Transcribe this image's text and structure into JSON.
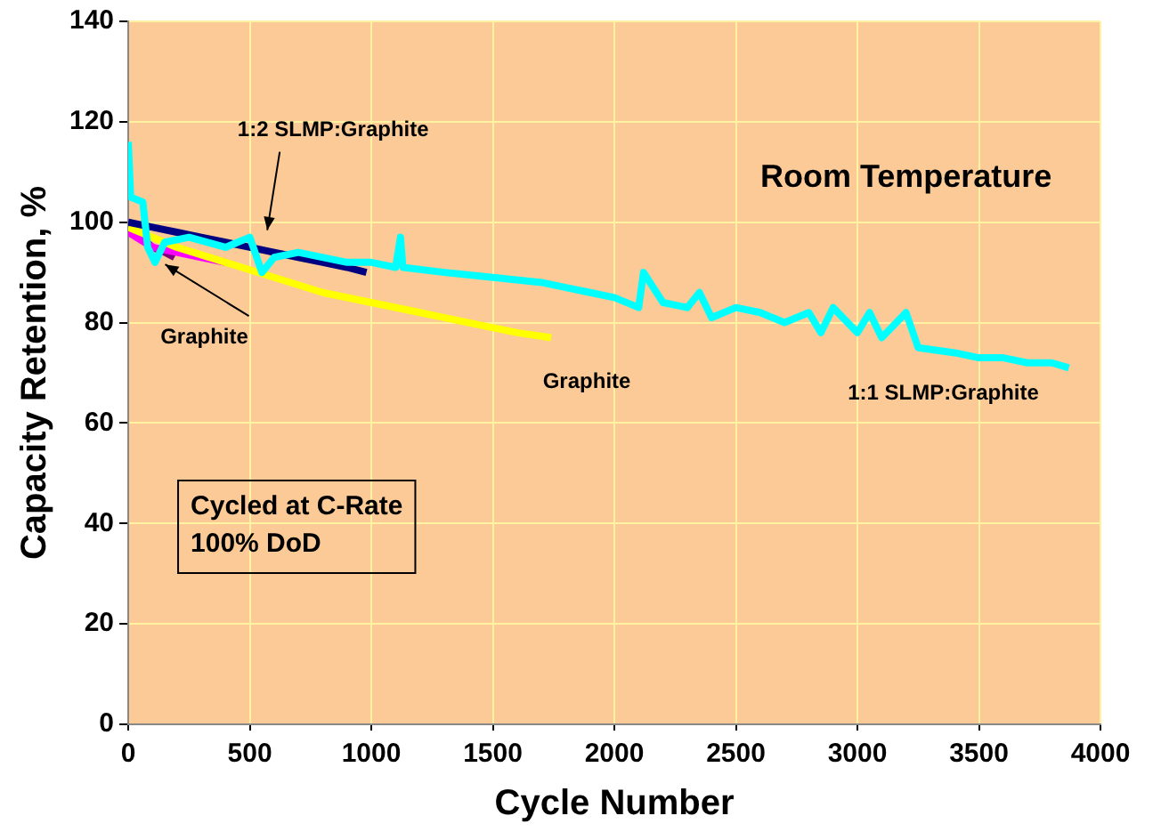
{
  "chart_data": {
    "type": "line",
    "xlabel": "Cycle Number",
    "ylabel": "Capacity Retention, %",
    "xlim": [
      0,
      4000
    ],
    "xticks": [
      0,
      500,
      1000,
      1500,
      2000,
      2500,
      3000,
      3500,
      4000
    ],
    "ylim": [
      0,
      140
    ],
    "yticks": [
      0,
      20,
      40,
      60,
      80,
      100,
      120,
      140
    ],
    "grid": true,
    "legend": false,
    "marker": "none",
    "line_style": "solid",
    "series": [
      {
        "color": "#00ffff",
        "x": [
          0,
          10,
          60,
          80,
          110,
          150,
          250,
          400,
          500,
          550,
          600,
          700,
          900,
          1000,
          1100,
          1120,
          1130,
          1300,
          1500,
          1700,
          1800,
          1900,
          2000,
          2100,
          2120,
          2200,
          2300,
          2350,
          2400,
          2500,
          2600,
          2700,
          2800,
          2850,
          2900,
          3000,
          3050,
          3100,
          3200,
          3250,
          3400,
          3500,
          3600,
          3700,
          3800,
          3870
        ],
        "values": [
          116,
          105,
          104,
          95,
          92,
          96,
          97,
          95,
          97,
          90,
          93,
          94,
          92,
          92,
          91,
          97,
          91,
          90,
          89,
          88,
          87,
          86,
          85,
          83,
          90,
          84,
          83,
          86,
          81,
          83,
          82,
          80,
          82,
          78,
          83,
          78,
          82,
          77,
          82,
          75,
          74,
          73,
          73,
          72,
          72,
          71
        ]
      },
      {
        "color": "#000080",
        "x": [
          0,
          100,
          200,
          300,
          400,
          500,
          600,
          700,
          800,
          900,
          980
        ],
        "values": [
          100,
          99,
          98,
          97,
          96,
          95,
          94,
          93,
          92,
          91,
          90
        ]
      },
      {
        "color": "#ffff00",
        "x": [
          0,
          200,
          400,
          600,
          800,
          1000,
          1200,
          1400,
          1600,
          1740
        ],
        "values": [
          99,
          95,
          92,
          89,
          86,
          84,
          82,
          80,
          78,
          77
        ]
      },
      {
        "color": "#ff00ff",
        "x": [
          0,
          100,
          200,
          300,
          400
        ],
        "values": [
          98,
          95,
          94,
          93,
          92
        ]
      },
      {
        "color": "#800080",
        "x": [
          0,
          50,
          100,
          150,
          190
        ],
        "values": [
          99,
          97,
          95,
          94,
          93
        ]
      }
    ],
    "annotations": [
      {
        "text": "1:2 SLMP:Graphite",
        "x": 550,
        "y": 97
      },
      {
        "text": "Graphite",
        "x": 130,
        "y": 93
      },
      {
        "text": "Graphite",
        "x": 1740,
        "y": 77
      },
      {
        "text": "1:1 SLMP:Graphite",
        "x": 3500,
        "y": 73
      },
      "Room Temperature",
      "Cycled at C-Rate\n100% DoD"
    ]
  }
}
